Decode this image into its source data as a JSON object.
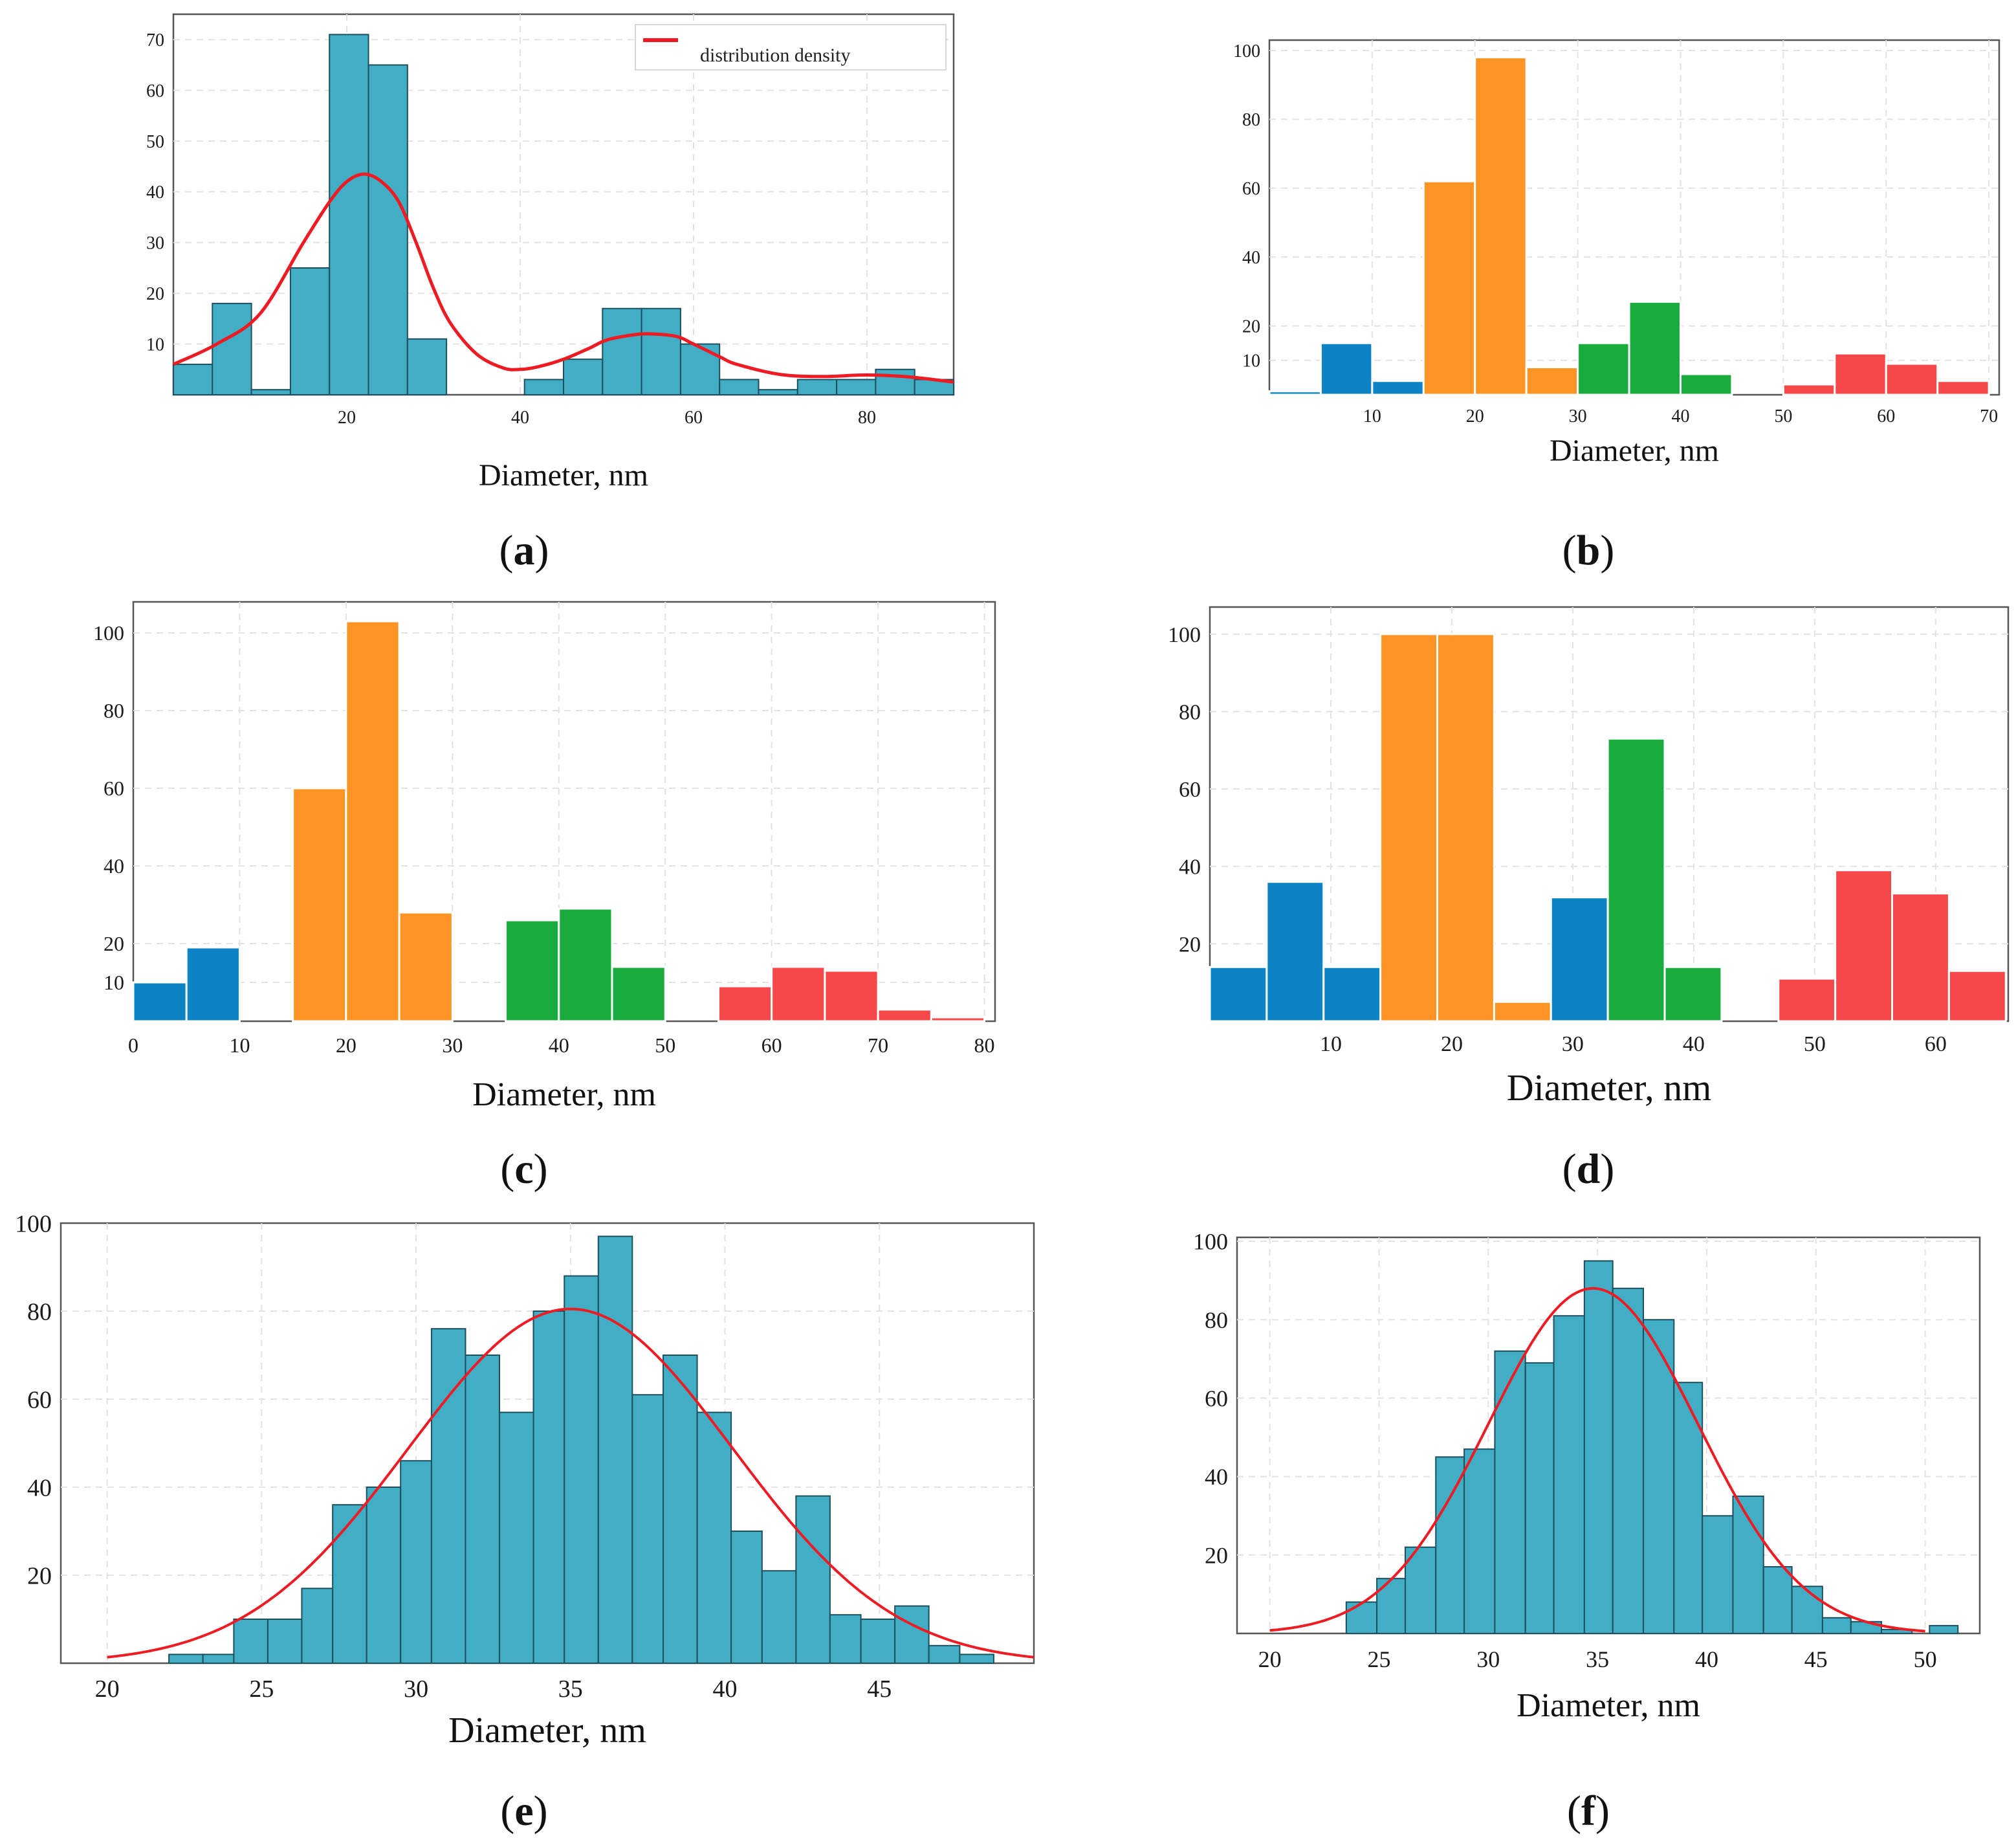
{
  "colors": {
    "hist": "#41aec5",
    "blue": "#0b83c4",
    "orange": "#fd9424",
    "green": "#1aab3e",
    "red": "#f64749",
    "curve": "#ee1b23"
  },
  "chart_data": [
    {
      "panel": "a",
      "tag": "a",
      "type": "bar",
      "xlabel": "Diameter, nm",
      "ylabel": "",
      "xlim": [
        0,
        90
      ],
      "ylim": [
        0,
        75
      ],
      "xticks": [
        20,
        40,
        60,
        80
      ],
      "yticks": [
        10,
        20,
        30,
        40,
        50,
        60,
        70
      ],
      "legend": {
        "label": "distribution density",
        "position": "top-right"
      },
      "bins": [
        {
          "x0": 0,
          "x1": 4.5,
          "value": 6
        },
        {
          "x0": 4.5,
          "x1": 9,
          "value": 18
        },
        {
          "x0": 9,
          "x1": 13.5,
          "value": 1
        },
        {
          "x0": 13.5,
          "x1": 18,
          "value": 25
        },
        {
          "x0": 18,
          "x1": 22.5,
          "value": 71
        },
        {
          "x0": 22.5,
          "x1": 27,
          "value": 65
        },
        {
          "x0": 27,
          "x1": 31.5,
          "value": 11
        },
        {
          "x0": 40.5,
          "x1": 45,
          "value": 3
        },
        {
          "x0": 45,
          "x1": 49.5,
          "value": 7
        },
        {
          "x0": 49.5,
          "x1": 54,
          "value": 17
        },
        {
          "x0": 54,
          "x1": 58.5,
          "value": 17
        },
        {
          "x0": 58.5,
          "x1": 63,
          "value": 10
        },
        {
          "x0": 63,
          "x1": 67.5,
          "value": 3
        },
        {
          "x0": 67.5,
          "x1": 72,
          "value": 1
        },
        {
          "x0": 72,
          "x1": 76.5,
          "value": 3
        },
        {
          "x0": 76.5,
          "x1": 81,
          "value": 3
        },
        {
          "x0": 81,
          "x1": 85.5,
          "value": 5
        },
        {
          "x0": 85.5,
          "x1": 90,
          "value": 3
        }
      ],
      "curve": {
        "x": [
          0,
          5,
          10,
          15,
          18,
          20,
          22,
          24,
          26,
          28,
          30,
          32,
          35,
          38,
          40,
          42,
          45,
          48,
          50,
          53,
          55,
          58,
          60,
          63,
          65,
          70,
          75,
          80,
          85,
          90
        ],
        "y": [
          6,
          10,
          16,
          30,
          38,
          42,
          43.5,
          42,
          38,
          30,
          21,
          14,
          8,
          5.3,
          5,
          5.5,
          7,
          9.2,
          10.8,
          11.8,
          12,
          11.5,
          10,
          7.5,
          6,
          4,
          3.6,
          3.9,
          3.5,
          2.5
        ]
      }
    },
    {
      "panel": "b",
      "tag": "b",
      "type": "bar",
      "xlabel": "Diameter, nm",
      "ylabel": "",
      "xlim": [
        0,
        71
      ],
      "ylim": [
        0,
        103
      ],
      "xticks": [
        10,
        20,
        30,
        40,
        50,
        60,
        70
      ],
      "yticks": [
        10,
        20,
        40,
        60,
        80,
        100
      ],
      "bins": [
        {
          "x0": 0,
          "x1": 5,
          "value": 1,
          "group": "blue"
        },
        {
          "x0": 5,
          "x1": 10,
          "value": 15,
          "group": "blue"
        },
        {
          "x0": 10,
          "x1": 15,
          "value": 4,
          "group": "blue"
        },
        {
          "x0": 15,
          "x1": 20,
          "value": 62,
          "group": "orange"
        },
        {
          "x0": 20,
          "x1": 25,
          "value": 98,
          "group": "orange"
        },
        {
          "x0": 25,
          "x1": 30,
          "value": 8,
          "group": "orange"
        },
        {
          "x0": 30,
          "x1": 35,
          "value": 15,
          "group": "green"
        },
        {
          "x0": 35,
          "x1": 40,
          "value": 27,
          "group": "green"
        },
        {
          "x0": 40,
          "x1": 45,
          "value": 6,
          "group": "green"
        },
        {
          "x0": 50,
          "x1": 55,
          "value": 3,
          "group": "red"
        },
        {
          "x0": 55,
          "x1": 60,
          "value": 12,
          "group": "red"
        },
        {
          "x0": 60,
          "x1": 65,
          "value": 9,
          "group": "red"
        },
        {
          "x0": 65,
          "x1": 70,
          "value": 4,
          "group": "red"
        }
      ]
    },
    {
      "panel": "c",
      "tag": "c",
      "type": "bar",
      "xlabel": "Diameter, nm",
      "ylabel": "",
      "xlim": [
        0,
        81
      ],
      "ylim": [
        0,
        108
      ],
      "xticks": [
        0,
        10,
        20,
        30,
        40,
        50,
        60,
        70,
        80
      ],
      "yticks": [
        10,
        20,
        40,
        60,
        80,
        100
      ],
      "bins": [
        {
          "x0": 0,
          "x1": 5,
          "value": 10,
          "group": "blue"
        },
        {
          "x0": 5,
          "x1": 10,
          "value": 19,
          "group": "blue"
        },
        {
          "x0": 15,
          "x1": 20,
          "value": 60,
          "group": "orange"
        },
        {
          "x0": 20,
          "x1": 25,
          "value": 103,
          "group": "orange"
        },
        {
          "x0": 25,
          "x1": 30,
          "value": 28,
          "group": "orange"
        },
        {
          "x0": 35,
          "x1": 40,
          "value": 26,
          "group": "green"
        },
        {
          "x0": 40,
          "x1": 45,
          "value": 29,
          "group": "green"
        },
        {
          "x0": 45,
          "x1": 50,
          "value": 14,
          "group": "green"
        },
        {
          "x0": 55,
          "x1": 60,
          "value": 9,
          "group": "red"
        },
        {
          "x0": 60,
          "x1": 65,
          "value": 14,
          "group": "red"
        },
        {
          "x0": 65,
          "x1": 70,
          "value": 13,
          "group": "red"
        },
        {
          "x0": 70,
          "x1": 75,
          "value": 3,
          "group": "red"
        },
        {
          "x0": 75,
          "x1": 80,
          "value": 1,
          "group": "red"
        }
      ]
    },
    {
      "panel": "d",
      "tag": "d",
      "type": "bar",
      "xlabel": "Diameter, nm",
      "ylabel": "",
      "xlim": [
        0,
        66
      ],
      "ylim": [
        0,
        107
      ],
      "xticks": [
        10,
        20,
        30,
        40,
        50,
        60
      ],
      "yticks": [
        20,
        40,
        60,
        80,
        100
      ],
      "bins": [
        {
          "x0": 0,
          "x1": 4.7,
          "value": 14,
          "group": "blue"
        },
        {
          "x0": 4.7,
          "x1": 9.4,
          "value": 36,
          "group": "blue"
        },
        {
          "x0": 9.4,
          "x1": 14.1,
          "value": 14,
          "group": "blue"
        },
        {
          "x0": 14.1,
          "x1": 18.8,
          "value": 100,
          "group": "orange"
        },
        {
          "x0": 18.8,
          "x1": 23.5,
          "value": 100,
          "group": "orange"
        },
        {
          "x0": 23.5,
          "x1": 28.2,
          "value": 5,
          "group": "orange"
        },
        {
          "x0": 28.2,
          "x1": 32.9,
          "value": 32,
          "group": "blue"
        },
        {
          "x0": 32.9,
          "x1": 37.6,
          "value": 73,
          "group": "green"
        },
        {
          "x0": 37.6,
          "x1": 42.3,
          "value": 14,
          "group": "green"
        },
        {
          "x0": 47,
          "x1": 51.7,
          "value": 11,
          "group": "red"
        },
        {
          "x0": 51.7,
          "x1": 56.4,
          "value": 39,
          "group": "red"
        },
        {
          "x0": 56.4,
          "x1": 61.1,
          "value": 33,
          "group": "red"
        },
        {
          "x0": 61.1,
          "x1": 65.8,
          "value": 13,
          "group": "red"
        }
      ]
    },
    {
      "panel": "e",
      "tag": "e",
      "type": "bar",
      "xlabel": "Diameter, nm",
      "ylabel": "",
      "xlim": [
        18.5,
        50
      ],
      "ylim": [
        0,
        100
      ],
      "xticks": [
        20,
        25,
        30,
        35,
        40,
        45
      ],
      "yticks": [
        20,
        40,
        60,
        80,
        100
      ],
      "bins": [
        {
          "x0": 22,
          "x1": 23.1,
          "value": 2
        },
        {
          "x0": 23.1,
          "x1": 24.1,
          "value": 2
        },
        {
          "x0": 24.1,
          "x1": 25.2,
          "value": 10
        },
        {
          "x0": 25.2,
          "x1": 26.3,
          "value": 10
        },
        {
          "x0": 26.3,
          "x1": 27.3,
          "value": 17
        },
        {
          "x0": 27.3,
          "x1": 28.4,
          "value": 36
        },
        {
          "x0": 28.4,
          "x1": 29.5,
          "value": 40
        },
        {
          "x0": 29.5,
          "x1": 30.5,
          "value": 46
        },
        {
          "x0": 30.5,
          "x1": 31.6,
          "value": 76
        },
        {
          "x0": 31.6,
          "x1": 32.7,
          "value": 70
        },
        {
          "x0": 32.7,
          "x1": 33.8,
          "value": 57
        },
        {
          "x0": 33.8,
          "x1": 34.8,
          "value": 80
        },
        {
          "x0": 34.8,
          "x1": 35.9,
          "value": 88
        },
        {
          "x0": 35.9,
          "x1": 37.0,
          "value": 97
        },
        {
          "x0": 37.0,
          "x1": 38.0,
          "value": 61
        },
        {
          "x0": 38.0,
          "x1": 39.1,
          "value": 70
        },
        {
          "x0": 39.1,
          "x1": 40.2,
          "value": 57
        },
        {
          "x0": 40.2,
          "x1": 41.2,
          "value": 30
        },
        {
          "x0": 41.2,
          "x1": 42.3,
          "value": 21
        },
        {
          "x0": 42.3,
          "x1": 43.4,
          "value": 38
        },
        {
          "x0": 43.4,
          "x1": 44.4,
          "value": 11
        },
        {
          "x0": 44.4,
          "x1": 45.5,
          "value": 10
        },
        {
          "x0": 45.5,
          "x1": 46.6,
          "value": 13
        },
        {
          "x0": 46.6,
          "x1": 47.6,
          "value": 4
        },
        {
          "x0": 47.6,
          "x1": 48.7,
          "value": 2
        }
      ],
      "curve": {
        "type": "normal",
        "mean": 35,
        "sd": 5.25,
        "peak": 80.5,
        "from": 20,
        "to": 50
      }
    },
    {
      "panel": "f",
      "tag": "f",
      "type": "bar",
      "xlabel": "Diameter, nm",
      "ylabel": "",
      "xlim": [
        18.5,
        52.5
      ],
      "ylim": [
        0,
        101
      ],
      "xticks": [
        20,
        25,
        30,
        35,
        40,
        45,
        50
      ],
      "yticks": [
        20,
        40,
        60,
        80,
        100
      ],
      "bins": [
        {
          "x0": 23.5,
          "x1": 24.9,
          "value": 8
        },
        {
          "x0": 24.9,
          "x1": 26.2,
          "value": 14
        },
        {
          "x0": 26.2,
          "x1": 27.6,
          "value": 22
        },
        {
          "x0": 27.6,
          "x1": 28.9,
          "value": 45
        },
        {
          "x0": 28.9,
          "x1": 30.3,
          "value": 47
        },
        {
          "x0": 30.3,
          "x1": 31.7,
          "value": 72
        },
        {
          "x0": 31.7,
          "x1": 33.0,
          "value": 69
        },
        {
          "x0": 33.0,
          "x1": 34.4,
          "value": 81
        },
        {
          "x0": 34.4,
          "x1": 35.7,
          "value": 95
        },
        {
          "x0": 35.7,
          "x1": 37.1,
          "value": 88
        },
        {
          "x0": 37.1,
          "x1": 38.5,
          "value": 80
        },
        {
          "x0": 38.5,
          "x1": 39.8,
          "value": 64
        },
        {
          "x0": 39.8,
          "x1": 41.2,
          "value": 30
        },
        {
          "x0": 41.2,
          "x1": 42.6,
          "value": 35
        },
        {
          "x0": 42.6,
          "x1": 43.9,
          "value": 17
        },
        {
          "x0": 43.9,
          "x1": 45.3,
          "value": 12
        },
        {
          "x0": 45.3,
          "x1": 46.6,
          "value": 4
        },
        {
          "x0": 46.6,
          "x1": 48.0,
          "value": 3
        },
        {
          "x0": 48.0,
          "x1": 49.4,
          "value": 1
        },
        {
          "x0": 50.2,
          "x1": 51.5,
          "value": 2
        }
      ],
      "curve": {
        "type": "normal",
        "mean": 34.8,
        "sd": 4.8,
        "peak": 88,
        "from": 20,
        "to": 50
      }
    }
  ]
}
